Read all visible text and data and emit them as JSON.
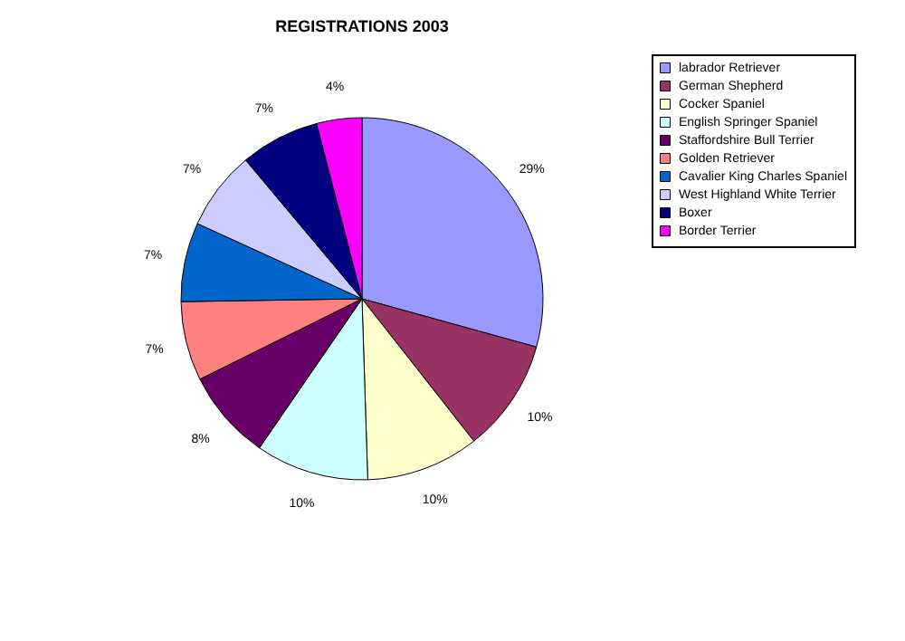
{
  "chart_data": {
    "type": "pie",
    "title": "REGISTRATIONS 2003",
    "categories": [
      "labrador Retriever",
      "German Shepherd",
      "Cocker Spaniel",
      "English Springer Spaniel",
      "Staffordshire Bull Terrier",
      "Golden Retriever",
      "Cavalier King Charles Spaniel",
      "West Highland White Terrier",
      "Boxer",
      "Border Terrier"
    ],
    "values": [
      29,
      10,
      10,
      10,
      8,
      7,
      7,
      7,
      7,
      4
    ],
    "colors": [
      "#9999ff",
      "#993366",
      "#ffffcc",
      "#ccffff",
      "#660066",
      "#ff8080",
      "#0066cc",
      "#ccccff",
      "#000080",
      "#ff00ff"
    ],
    "value_labels": [
      "29%",
      "10%",
      "10%",
      "10%",
      "8%",
      "7%",
      "7%",
      "7%",
      "7%",
      "4%"
    ],
    "legend": "right"
  }
}
